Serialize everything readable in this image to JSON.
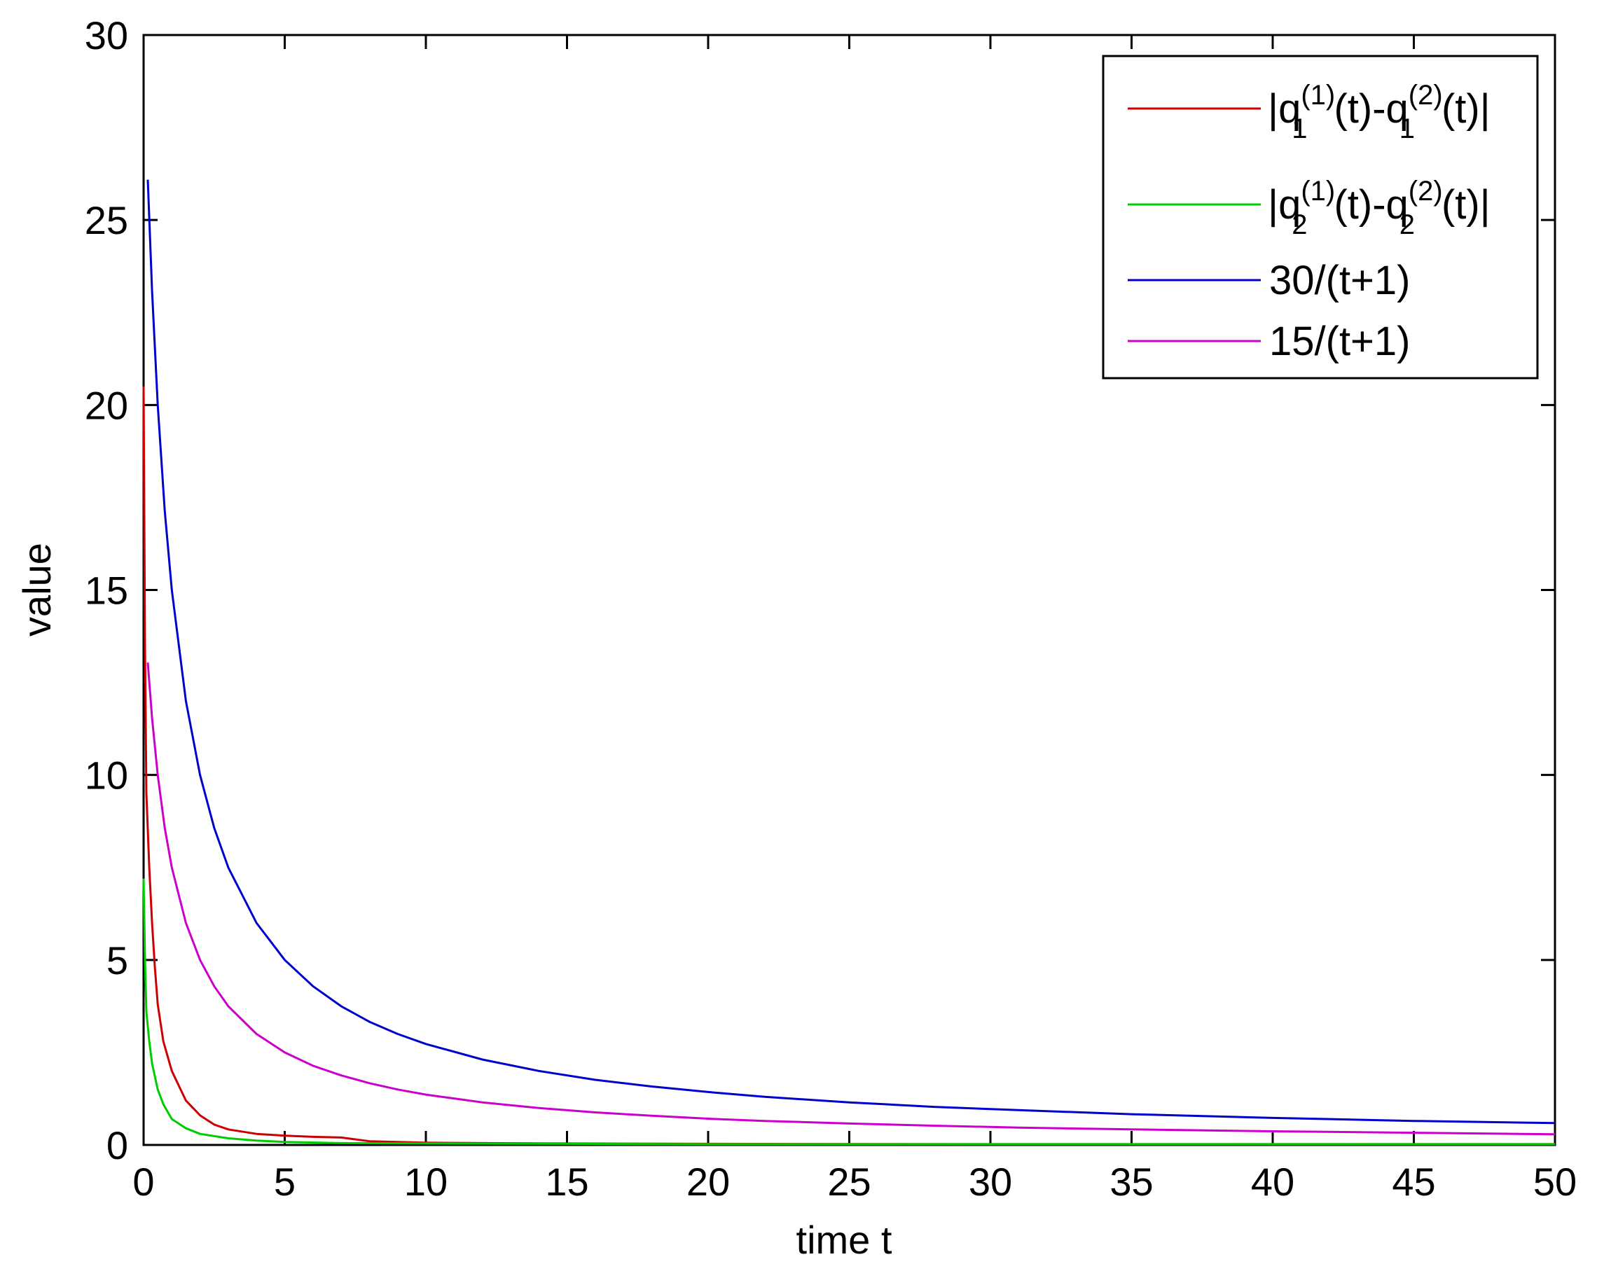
{
  "chart_data": {
    "type": "line",
    "title": "",
    "xlabel": "time t",
    "ylabel": "value",
    "xlim": [
      0,
      50
    ],
    "ylim": [
      0,
      30
    ],
    "x_ticks": [
      0,
      5,
      10,
      15,
      20,
      25,
      30,
      35,
      40,
      45,
      50
    ],
    "y_ticks": [
      0,
      5,
      10,
      15,
      20,
      25,
      30
    ],
    "x_tick_labels": [
      "0",
      "5",
      "10",
      "15",
      "20",
      "25",
      "30",
      "35",
      "40",
      "45",
      "50"
    ],
    "y_tick_labels": [
      "0",
      "5",
      "10",
      "15",
      "20",
      "25",
      "30"
    ],
    "grid": false,
    "legend_position": "top-right",
    "series": [
      {
        "label": "|q1(1)(t)-q1(2)(t)|",
        "color": "#cc0000",
        "x": [
          0,
          0.05,
          0.1,
          0.2,
          0.3,
          0.4,
          0.5,
          0.7,
          1,
          1.5,
          2,
          2.5,
          3,
          4,
          5,
          6,
          7,
          8,
          10,
          12,
          15,
          20,
          30,
          40,
          50
        ],
        "y": [
          20.5,
          13.5,
          9.5,
          7.5,
          6.0,
          4.8,
          3.8,
          2.8,
          2.0,
          1.2,
          0.8,
          0.55,
          0.42,
          0.3,
          0.25,
          0.22,
          0.2,
          0.1,
          0.06,
          0.05,
          0.04,
          0.03,
          0.02,
          0.02,
          0.02
        ]
      },
      {
        "label": "|q2(1)(t)-q2(2)(t)|",
        "color": "#00cc00",
        "x": [
          0,
          0.05,
          0.1,
          0.2,
          0.3,
          0.5,
          0.7,
          1,
          1.5,
          2,
          3,
          4,
          5,
          7,
          10,
          15,
          20,
          30,
          40,
          50
        ],
        "y": [
          7.2,
          5.0,
          3.6,
          2.8,
          2.2,
          1.5,
          1.1,
          0.7,
          0.45,
          0.3,
          0.18,
          0.12,
          0.08,
          0.05,
          0.04,
          0.03,
          0.02,
          0.02,
          0.02,
          0.02
        ]
      },
      {
        "label": "30/(t+1)",
        "color": "#0000cc",
        "x": [
          0.15,
          0.3,
          0.5,
          0.75,
          1,
          1.5,
          2,
          2.5,
          3,
          4,
          5,
          6,
          7,
          8,
          9,
          10,
          12,
          14,
          16,
          18,
          20,
          22,
          25,
          28,
          31,
          35,
          40,
          45,
          50
        ],
        "y": [
          26.09,
          23.08,
          20.0,
          17.14,
          15.0,
          12.0,
          10.0,
          8.57,
          7.5,
          6.0,
          5.0,
          4.29,
          3.75,
          3.33,
          3.0,
          2.73,
          2.31,
          2.0,
          1.76,
          1.58,
          1.43,
          1.3,
          1.15,
          1.03,
          0.94,
          0.83,
          0.73,
          0.65,
          0.59
        ]
      },
      {
        "label": "15/(t+1)",
        "color": "#cc00cc",
        "x": [
          0.15,
          0.3,
          0.5,
          0.75,
          1,
          1.5,
          2,
          2.5,
          3,
          4,
          5,
          6,
          7,
          8,
          9,
          10,
          12,
          14,
          16,
          18,
          20,
          22,
          25,
          28,
          31,
          35,
          40,
          45,
          50
        ],
        "y": [
          13.04,
          11.54,
          10.0,
          8.57,
          7.5,
          6.0,
          5.0,
          4.29,
          3.75,
          3.0,
          2.5,
          2.14,
          1.88,
          1.67,
          1.5,
          1.36,
          1.15,
          1.0,
          0.88,
          0.79,
          0.71,
          0.65,
          0.58,
          0.52,
          0.47,
          0.42,
          0.37,
          0.33,
          0.29
        ]
      }
    ],
    "legend": [
      {
        "q": "|q",
        "sub": "1",
        "sup": "(1)",
        "mid": "(t)-q",
        "sub2": "1",
        "sup2": "(2)",
        "end": "(t)|"
      },
      {
        "q": "|q",
        "sub": "2",
        "sup": "(1)",
        "mid": "(t)-q",
        "sub2": "2",
        "sup2": "(2)",
        "end": "(t)|"
      },
      {
        "text": "30/(t+1)"
      },
      {
        "text": "15/(t+1)"
      }
    ]
  }
}
